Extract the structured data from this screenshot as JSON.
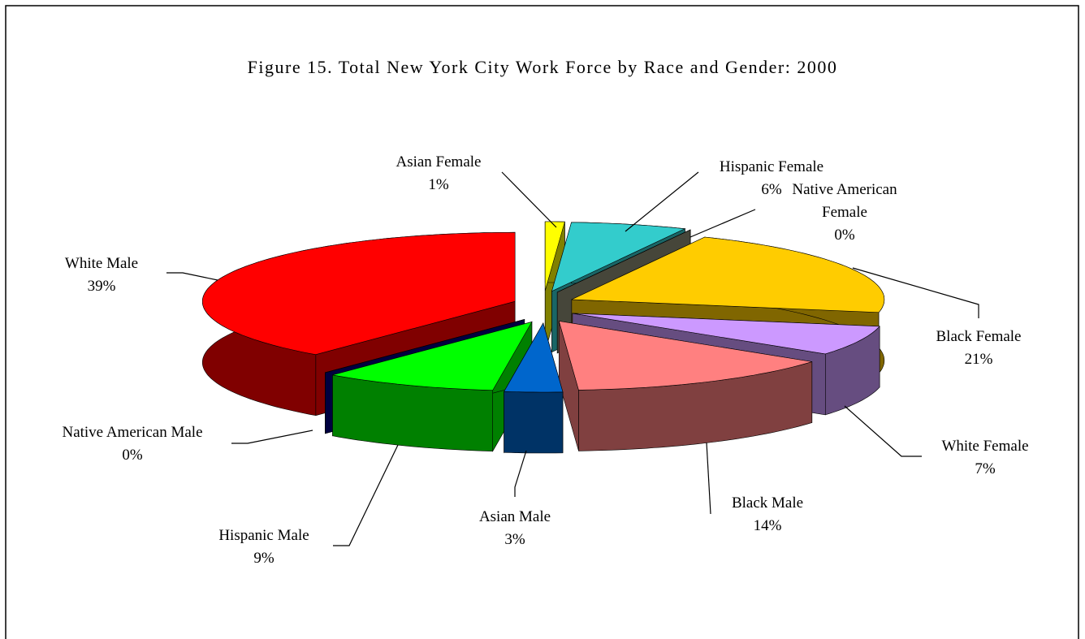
{
  "chart_data": {
    "type": "pie3d",
    "title": "Figure 15.  Total New York City Work Force by Race and Gender:  2000",
    "categories": [
      "Asian Female",
      "Hispanic Female",
      "Native American Female",
      "Black Female",
      "White Female",
      "Black Male",
      "Asian Male",
      "Hispanic Male",
      "Native American Male",
      "White Male"
    ],
    "values": [
      1,
      6,
      0,
      21,
      7,
      14,
      3,
      9,
      0,
      39
    ],
    "value_labels": [
      "1%",
      "6%",
      "0%",
      "21%",
      "7%",
      "14%",
      "3%",
      "9%",
      "0%",
      "39%"
    ],
    "colors": [
      "#ffff00",
      "#33cccc",
      "#8c8c73",
      "#ffcc00",
      "#cc99ff",
      "#ff8080",
      "#0066cc",
      "#00ff00",
      "#000080",
      "#ff0000"
    ],
    "exploded": true
  }
}
